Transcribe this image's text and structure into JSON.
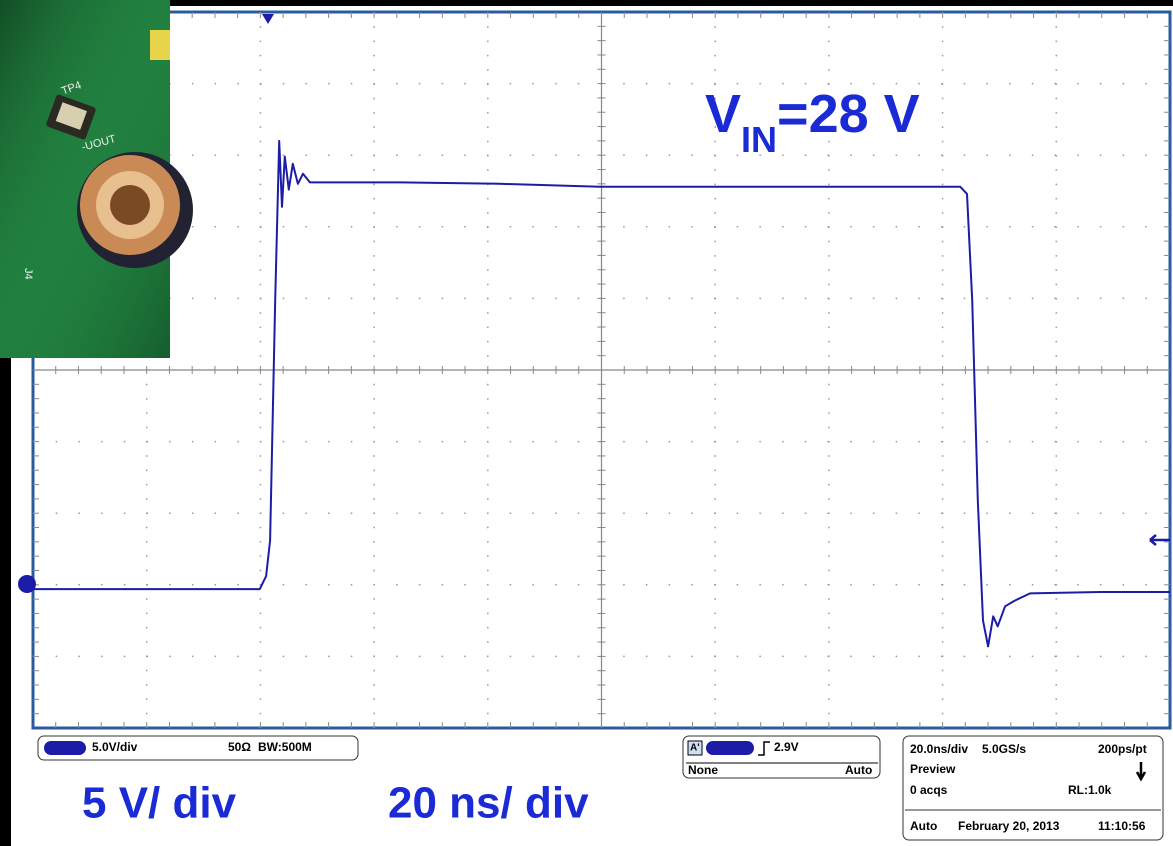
{
  "chart_data": {
    "type": "line",
    "color": "#1c1ca8",
    "x": [
      0,
      39.9,
      41.0,
      41.7,
      42.6,
      43.3,
      43.8,
      44.3,
      45.0,
      45.7,
      46.6,
      47.5,
      48.7,
      55.8,
      64.6,
      82.1,
      99.7,
      117.3,
      134.9,
      152.5,
      163.1,
      164.3,
      165.2,
      166.2,
      167.1,
      168.0,
      168.9,
      169.7,
      171.0,
      172.7,
      175.4,
      187.7,
      200
    ],
    "values": [
      -0.3,
      -0.3,
      0.6,
      3.1,
      19.9,
      31.0,
      26.4,
      29.9,
      27.6,
      29.4,
      28.0,
      28.7,
      28.1,
      28.1,
      28.1,
      28.0,
      27.8,
      27.8,
      27.8,
      27.8,
      27.8,
      27.3,
      19.9,
      5.9,
      -2.5,
      -4.3,
      -2.2,
      -2.9,
      -1.5,
      -1.1,
      -0.6,
      -0.5,
      -0.5
    ],
    "xlim": [
      0,
      200
    ],
    "ylim": [
      -10,
      40
    ],
    "annotation": {
      "main": "V",
      "sub": "IN",
      "rest": "=28 V"
    },
    "scale_labels": [
      "5 V/ div",
      "20 ns/ div"
    ]
  },
  "status_bar": {
    "channel": {
      "scale": "5.0V/div",
      "impedance": "50Ω",
      "bandwidth": "BW:500M"
    },
    "trigger": {
      "source": "A'",
      "level": "2.9V",
      "coupling": "None",
      "mode": "Auto"
    },
    "acquisition": {
      "time_scale": "20.0ns/div",
      "sample_rate": "5.0GS/s",
      "resolution": "200ps/pt",
      "state": "Preview",
      "acqs": "0 acqs",
      "record_length": "RL:1.0k",
      "run_mode": "Auto",
      "date": "February 20, 2013",
      "time": "11:10:56"
    }
  },
  "photo_labels": [
    "TP4",
    "-UOUT",
    "J4"
  ]
}
